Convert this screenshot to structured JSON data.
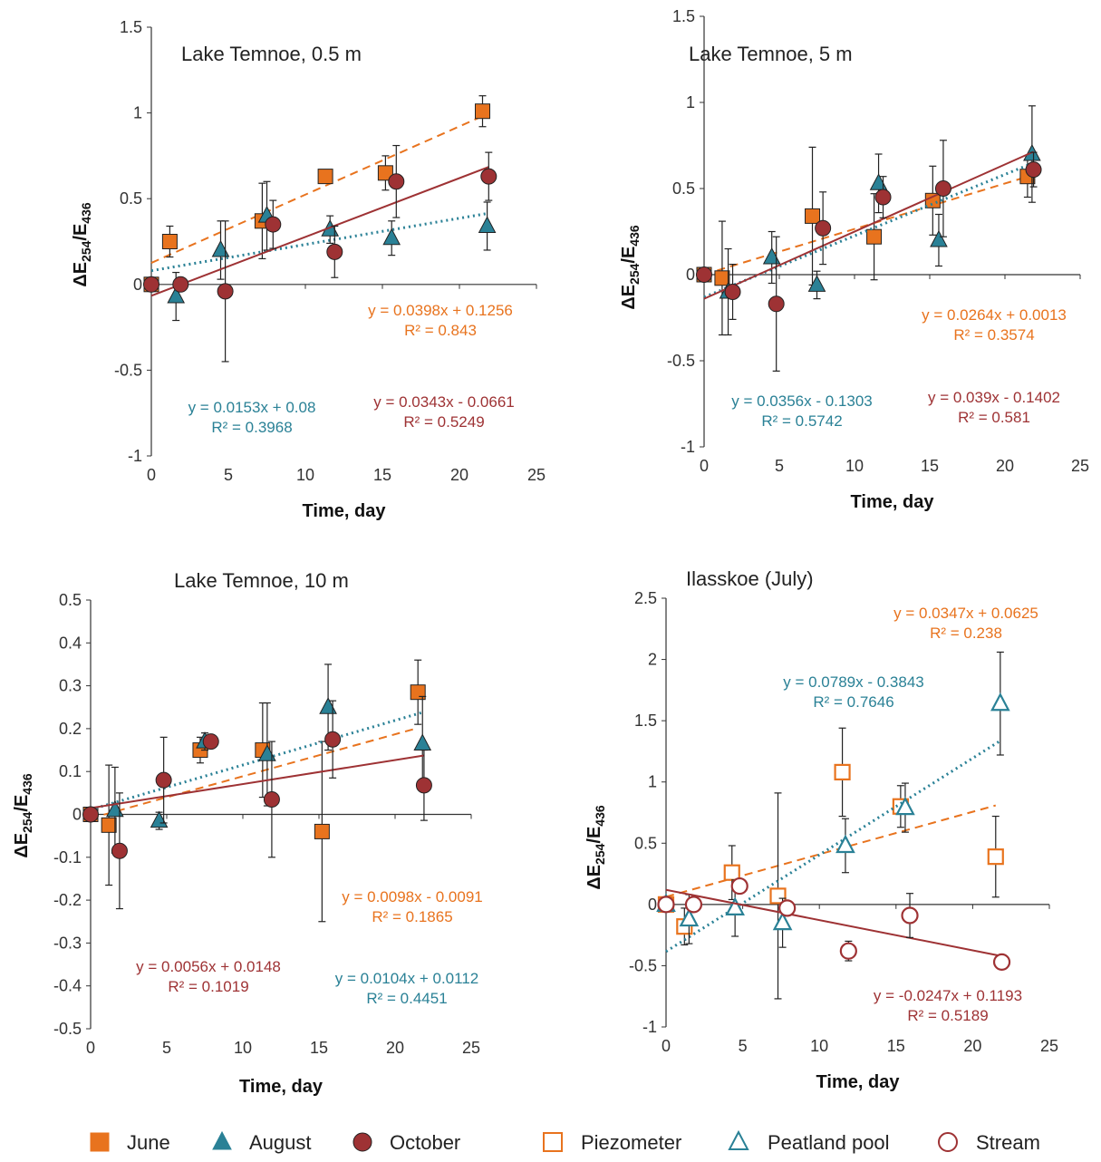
{
  "colors": {
    "june": "#E8731E",
    "august": "#2A8196",
    "october": "#9E3234"
  },
  "chart_data": [
    {
      "type": "scatter",
      "title": "Lake Temnoe, 0.5 m",
      "xlabel": "Time, day",
      "ylabel": "ΔE254/E436",
      "xlim": [
        0,
        25
      ],
      "ylim": [
        -1,
        1.5
      ],
      "xticks": [
        "0",
        "5",
        "10",
        "15",
        "20",
        "25"
      ],
      "yticks": [
        "-1",
        "-0.5",
        "0",
        "0.5",
        "1",
        "1.5"
      ],
      "series": [
        {
          "name": "June",
          "marker": "square-filled",
          "trend": "dashed",
          "x": [
            0,
            1.2,
            7.2,
            11.3,
            15.2,
            21.5
          ],
          "y": [
            0,
            0.25,
            0.37,
            0.63,
            0.65,
            1.01
          ],
          "err": [
            0,
            0.09,
            0.22,
            0,
            0.1,
            0.09
          ],
          "trend_line": {
            "x": [
              0,
              21.5
            ],
            "y": [
              0.1256,
              0.9813
            ]
          },
          "equation": "y = 0.0398x + 0.1256",
          "r2": "R² = 0.843"
        },
        {
          "name": "August",
          "marker": "triangle-filled",
          "trend": "dotted",
          "x": [
            1.6,
            4.5,
            7.5,
            11.6,
            15.6,
            21.8
          ],
          "y": [
            -0.07,
            0.2,
            0.4,
            0.32,
            0.27,
            0.34
          ],
          "err": [
            0.14,
            0.17,
            0.2,
            0.08,
            0.1,
            0.14
          ],
          "trend_line": {
            "x": [
              0,
              21.8
            ],
            "y": [
              0.08,
              0.4135
            ]
          },
          "equation": "y = 0.0153x + 0.08",
          "r2": "R² = 0.3968"
        },
        {
          "name": "October",
          "marker": "circle-filled",
          "trend": "solid",
          "x": [
            0,
            1.9,
            4.8,
            7.9,
            11.9,
            15.9,
            21.9
          ],
          "y": [
            0,
            0,
            -0.04,
            0.35,
            0.19,
            0.6,
            0.63
          ],
          "err": [
            0,
            0,
            0.41,
            0.14,
            0.15,
            0.21,
            0.14
          ],
          "trend_line": {
            "x": [
              0,
              21.9
            ],
            "y": [
              -0.0661,
              0.6851
            ]
          },
          "equation": "y = 0.0343x - 0.0661",
          "r2": "R² = 0.5249"
        }
      ]
    },
    {
      "type": "scatter",
      "title": "Lake Temnoe, 5 m",
      "xlabel": "Time, day",
      "ylabel": "ΔE254/E436",
      "xlim": [
        0,
        25
      ],
      "ylim": [
        -1,
        1.5
      ],
      "xticks": [
        "0",
        "5",
        "10",
        "15",
        "20",
        "25"
      ],
      "yticks": [
        "-1",
        "-0.5",
        "0",
        "0.5",
        "1",
        "1.5"
      ],
      "series": [
        {
          "name": "June",
          "marker": "square-filled",
          "trend": "dashed",
          "x": [
            0,
            1.2,
            7.2,
            11.3,
            15.2,
            21.5
          ],
          "y": [
            0,
            -0.02,
            0.34,
            0.22,
            0.43,
            0.57
          ],
          "err": [
            0,
            0.33,
            0.4,
            0.25,
            0.2,
            0.12
          ],
          "trend_line": {
            "x": [
              0,
              21.5
            ],
            "y": [
              0.0013,
              0.5689
            ]
          },
          "equation": "y = 0.0264x + 0.0013",
          "r2": "R² = 0.3574"
        },
        {
          "name": "August",
          "marker": "triangle-filled",
          "trend": "dotted",
          "x": [
            1.6,
            4.5,
            7.5,
            11.6,
            15.6,
            21.8
          ],
          "y": [
            -0.1,
            0.1,
            -0.06,
            0.53,
            0.2,
            0.7
          ],
          "err": [
            0.25,
            0.15,
            0.08,
            0.17,
            0.15,
            0.28
          ],
          "trend_line": {
            "x": [
              0,
              21.8
            ],
            "y": [
              -0.1303,
              0.6458
            ]
          },
          "equation": "y = 0.0356x - 0.1303",
          "r2": "R² = 0.5742"
        },
        {
          "name": "October",
          "marker": "circle-filled",
          "trend": "solid",
          "x": [
            0,
            1.9,
            4.8,
            7.9,
            11.9,
            15.9,
            21.9
          ],
          "y": [
            0,
            -0.1,
            -0.17,
            0.27,
            0.45,
            0.5,
            0.61
          ],
          "err": [
            0,
            0.16,
            0.39,
            0.21,
            0.12,
            0.28,
            0.1
          ],
          "trend_line": {
            "x": [
              0,
              21.9
            ],
            "y": [
              -0.1402,
              0.7139
            ]
          },
          "equation": "y = 0.039x - 0.1402",
          "r2": "R² = 0.581"
        }
      ]
    },
    {
      "type": "scatter",
      "title": "Lake Temnoe, 10 m",
      "xlabel": "Time, day",
      "ylabel": "ΔE254/E436",
      "xlim": [
        0,
        25
      ],
      "ylim": [
        -0.5,
        0.5
      ],
      "xticks": [
        "0",
        "5",
        "10",
        "15",
        "20",
        "25"
      ],
      "yticks": [
        "-0.5",
        "-0.4",
        "-0.3",
        "-0.2",
        "-0.1",
        "0",
        "0.1",
        "0.2",
        "0.3",
        "0.4",
        "0.5"
      ],
      "series": [
        {
          "name": "June",
          "marker": "square-filled",
          "trend": "dashed",
          "x": [
            0,
            1.2,
            7.2,
            11.3,
            15.2,
            21.5
          ],
          "y": [
            0,
            -0.025,
            0.15,
            0.15,
            -0.04,
            0.285
          ],
          "err": [
            0,
            0.14,
            0.03,
            0.11,
            0.21,
            0.075
          ],
          "trend_line": {
            "x": [
              0,
              21.5
            ],
            "y": [
              -0.0091,
              0.2016
            ]
          },
          "equation": "y = 0.0098x - 0.0091",
          "r2": "R² = 0.1865"
        },
        {
          "name": "August",
          "marker": "triangle-filled",
          "trend": "dotted",
          "x": [
            1.6,
            4.5,
            7.5,
            11.6,
            15.6,
            21.8
          ],
          "y": [
            0.01,
            -0.015,
            0.17,
            0.14,
            0.25,
            0.165
          ],
          "err": [
            0.1,
            0.02,
            0.02,
            0.12,
            0.1,
            0.11
          ],
          "trend_line": {
            "x": [
              0,
              21.8
            ],
            "y": [
              0.0112,
              0.2379
            ]
          },
          "equation": "y = 0.0104x + 0.0112",
          "r2": "R² = 0.4451"
        },
        {
          "name": "October",
          "marker": "circle-filled",
          "trend": "solid",
          "x": [
            0,
            1.9,
            4.8,
            7.9,
            11.9,
            15.9,
            21.9
          ],
          "y": [
            0,
            -0.085,
            0.08,
            0.17,
            0.035,
            0.175,
            0.068
          ],
          "err": [
            0,
            0.135,
            0.1,
            0,
            0.135,
            0.09,
            0.082
          ],
          "trend_line": {
            "x": [
              0,
              21.9
            ],
            "y": [
              0.0148,
              0.1374
            ]
          },
          "equation": "y = 0.0056x + 0.0148",
          "r2": "R² = 0.1019"
        }
      ]
    },
    {
      "type": "scatter",
      "title": "Ilasskoe (July)",
      "xlabel": "Time, day",
      "ylabel": "ΔE254/E436",
      "xlim": [
        0,
        25
      ],
      "ylim": [
        -1,
        2.5
      ],
      "xticks": [
        "0",
        "5",
        "10",
        "15",
        "20",
        "25"
      ],
      "yticks": [
        "-1",
        "-0.5",
        "0",
        "0.5",
        "1",
        "1.5",
        "2",
        "2.5"
      ],
      "series": [
        {
          "name": "Piezometer",
          "marker": "square-open",
          "trend": "dashed",
          "x": [
            0,
            1.2,
            4.3,
            7.3,
            11.5,
            15.3,
            21.5
          ],
          "y": [
            0,
            -0.18,
            0.26,
            0.07,
            1.08,
            0.8,
            0.39
          ],
          "err": [
            0,
            0.15,
            0.22,
            0.84,
            0.36,
            0.17,
            0.33
          ],
          "trend_line": {
            "x": [
              0,
              21.5
            ],
            "y": [
              0.0625,
              0.8086
            ]
          },
          "equation": "y = 0.0347x + 0.0625",
          "r2": "R² = 0.238"
        },
        {
          "name": "Peatland pool",
          "marker": "triangle-open",
          "trend": "dotted",
          "x": [
            0,
            1.5,
            4.5,
            7.6,
            11.7,
            15.6,
            21.8
          ],
          "y": [
            0,
            -0.12,
            -0.03,
            -0.15,
            0.48,
            0.79,
            1.64
          ],
          "err": [
            0,
            0.2,
            0.23,
            0.2,
            0.22,
            0.2,
            0.42
          ],
          "trend_line": {
            "x": [
              0,
              21.8
            ],
            "y": [
              -0.3843,
              1.336
            ]
          },
          "equation": "y = 0.0789x - 0.3843",
          "r2": "R² = 0.7646"
        },
        {
          "name": "Stream",
          "marker": "circle-open",
          "trend": "solid",
          "x": [
            0,
            1.8,
            4.8,
            7.9,
            11.9,
            15.9,
            21.9
          ],
          "y": [
            0,
            0,
            0.15,
            -0.03,
            -0.38,
            -0.09,
            -0.47
          ],
          "err": [
            0,
            0,
            0,
            0,
            0.08,
            0.18,
            0
          ],
          "trend_line": {
            "x": [
              0,
              21.9
            ],
            "y": [
              0.1193,
              -0.4216
            ]
          },
          "equation": "y = -0.0247x + 0.1193",
          "r2": "R² = 0.5189"
        }
      ]
    }
  ],
  "legend": {
    "items": [
      {
        "label": "June",
        "marker": "square-filled",
        "color": "#E8731E"
      },
      {
        "label": "August",
        "marker": "triangle-filled",
        "color": "#2A8196"
      },
      {
        "label": "October",
        "marker": "circle-filled",
        "color": "#9E3234"
      },
      {
        "label": "Piezometer",
        "marker": "square-open",
        "color": "#E8731E"
      },
      {
        "label": "Peatland pool",
        "marker": "triangle-open",
        "color": "#2A8196"
      },
      {
        "label": "Stream",
        "marker": "circle-open",
        "color": "#9E3234"
      }
    ]
  }
}
